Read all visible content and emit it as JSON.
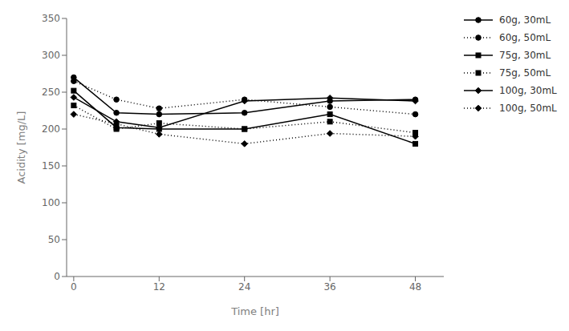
{
  "chart_data": {
    "type": "line",
    "x": [
      0,
      6,
      12,
      24,
      36,
      48
    ],
    "series": [
      {
        "name": "60g, 30mL",
        "color": "#000000",
        "values": [
          270,
          222,
          220,
          222,
          238,
          240
        ],
        "marker": "circle",
        "line_style": "solid"
      },
      {
        "name": "60g, 50mL",
        "color": "#000000",
        "values": [
          265,
          240,
          228,
          240,
          230,
          220
        ],
        "marker": "circle",
        "line_style": "dotted"
      },
      {
        "name": "75g, 30mL",
        "color": "#000000",
        "values": [
          252,
          202,
          200,
          200,
          220,
          180
        ],
        "marker": "square",
        "line_style": "solid"
      },
      {
        "name": "75g, 50mL",
        "color": "#000000",
        "values": [
          232,
          200,
          208,
          200,
          210,
          195
        ],
        "marker": "square",
        "line_style": "dotted"
      },
      {
        "name": "100g, 30mL",
        "color": "#000000",
        "values": [
          243,
          210,
          202,
          238,
          242,
          238
        ],
        "marker": "diamond",
        "line_style": "solid"
      },
      {
        "name": "100g, 50mL",
        "color": "#000000",
        "values": [
          220,
          207,
          193,
          180,
          194,
          190
        ],
        "marker": "diamond",
        "line_style": "dotted"
      }
    ],
    "xlabel": "Time [hr]",
    "ylabel": "Acidity [mg/L]",
    "xlim": [
      -1,
      52
    ],
    "xticks": [
      0,
      12,
      24,
      36,
      48
    ],
    "ylim": [
      0,
      350
    ],
    "yticks": [
      0,
      50,
      100,
      150,
      200,
      250,
      300,
      350
    ],
    "grid": false,
    "legend": "right"
  }
}
